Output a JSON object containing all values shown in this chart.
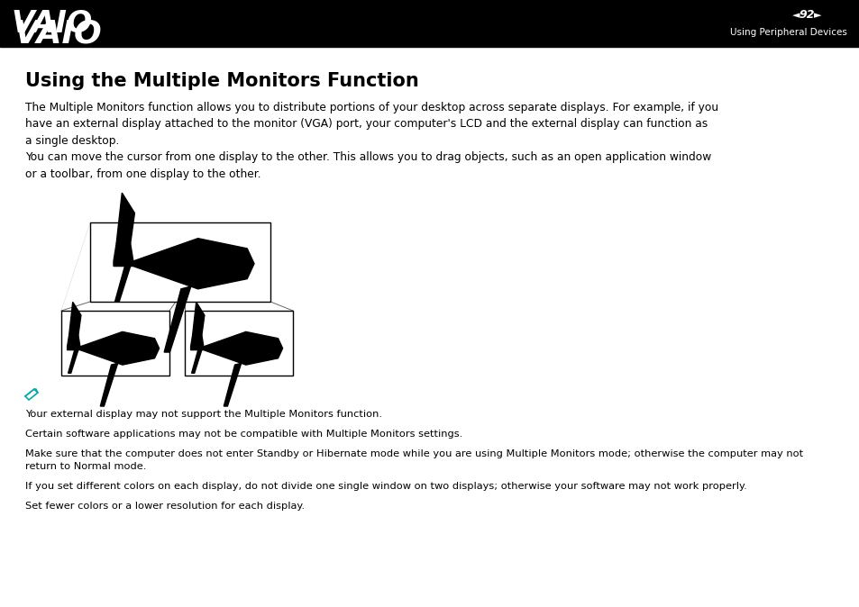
{
  "bg_color": "#ffffff",
  "header_bg": "#000000",
  "header_text_color": "#ffffff",
  "header_page": "92",
  "header_subtitle": "Using Peripheral Devices",
  "title": "Using the Multiple Monitors Function",
  "title_fontsize": 15,
  "body_fontsize": 8.8,
  "para1": "The Multiple Monitors function allows you to distribute portions of your desktop across separate displays. For example, if you\nhave an external display attached to the monitor (VGA) port, your computer's LCD and the external display can function as\na single desktop.",
  "para2": "You can move the cursor from one display to the other. This allows you to drag objects, such as an open application window\nor a toolbar, from one display to the other.",
  "note_color": "#00aaaa",
  "note1": "Your external display may not support the Multiple Monitors function.",
  "note2": "Certain software applications may not be compatible with Multiple Monitors settings.",
  "note3": "Make sure that the computer does not enter Standby or Hibernate mode while you are using Multiple Monitors mode; otherwise the computer may not\nreturn to Normal mode.",
  "note4": "If you set different colors on each display, do not divide one single window on two displays; otherwise your software may not work properly.",
  "note5": "Set fewer colors or a lower resolution for each display."
}
